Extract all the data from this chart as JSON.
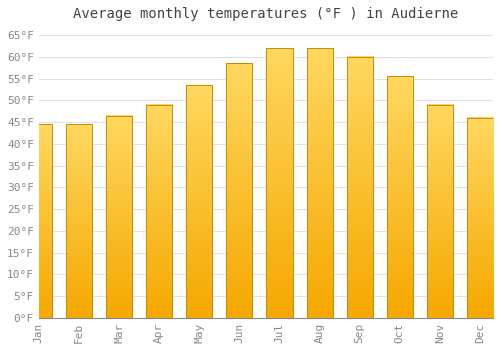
{
  "title": "Average monthly temperatures (°F ) in Audierne",
  "months": [
    "Jan",
    "Feb",
    "Mar",
    "Apr",
    "May",
    "Jun",
    "Jul",
    "Aug",
    "Sep",
    "Oct",
    "Nov",
    "Dec"
  ],
  "values": [
    44.5,
    44.5,
    46.5,
    49,
    53.5,
    58.5,
    62,
    62,
    60,
    55.5,
    49,
    46
  ],
  "bar_color_top": "#FFD060",
  "bar_color_bottom": "#F5A800",
  "bar_edge_color": "#CC8800",
  "ylim": [
    0,
    67
  ],
  "yticks": [
    0,
    5,
    10,
    15,
    20,
    25,
    30,
    35,
    40,
    45,
    50,
    55,
    60,
    65
  ],
  "ytick_labels": [
    "0°F",
    "5°F",
    "10°F",
    "15°F",
    "20°F",
    "25°F",
    "30°F",
    "35°F",
    "40°F",
    "45°F",
    "50°F",
    "55°F",
    "60°F",
    "65°F"
  ],
  "background_color": "#ffffff",
  "grid_color": "#e0e0e8",
  "title_fontsize": 10,
  "tick_fontsize": 8,
  "font_family": "monospace"
}
